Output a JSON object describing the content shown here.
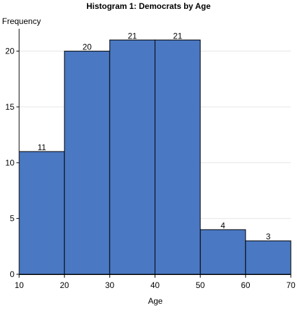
{
  "chart_data": {
    "type": "bar",
    "title": "Histogram 1: Democrats by Age",
    "xlabel": "Age",
    "ylabel": "Frequency",
    "bins": [
      {
        "start": 10,
        "end": 20,
        "value": 11,
        "label": "11"
      },
      {
        "start": 20,
        "end": 30,
        "value": 20,
        "label": "20"
      },
      {
        "start": 30,
        "end": 40,
        "value": 21,
        "label": "21"
      },
      {
        "start": 40,
        "end": 50,
        "value": 21,
        "label": "21"
      },
      {
        "start": 50,
        "end": 60,
        "value": 4,
        "label": "4"
      },
      {
        "start": 60,
        "end": 70,
        "value": 3,
        "label": "3"
      }
    ],
    "xlim": [
      10,
      70
    ],
    "ylim": [
      0,
      22
    ],
    "x_ticks": [
      {
        "value": 10,
        "label": "10"
      },
      {
        "value": 20,
        "label": "20"
      },
      {
        "value": 30,
        "label": "30"
      },
      {
        "value": 40,
        "label": "40"
      },
      {
        "value": 50,
        "label": "50"
      },
      {
        "value": 60,
        "label": "60"
      },
      {
        "value": 70,
        "label": "70"
      }
    ],
    "y_ticks": [
      {
        "value": 0,
        "label": "0"
      },
      {
        "value": 5,
        "label": "5"
      },
      {
        "value": 10,
        "label": "10"
      },
      {
        "value": 15,
        "label": "15"
      },
      {
        "value": 20,
        "label": "20"
      }
    ],
    "grid": "horizontal",
    "colors": {
      "bar_fill": "#4a78c2",
      "bar_stroke": "#000000",
      "grid": "#e6e6e6",
      "axis": "#000000"
    }
  }
}
